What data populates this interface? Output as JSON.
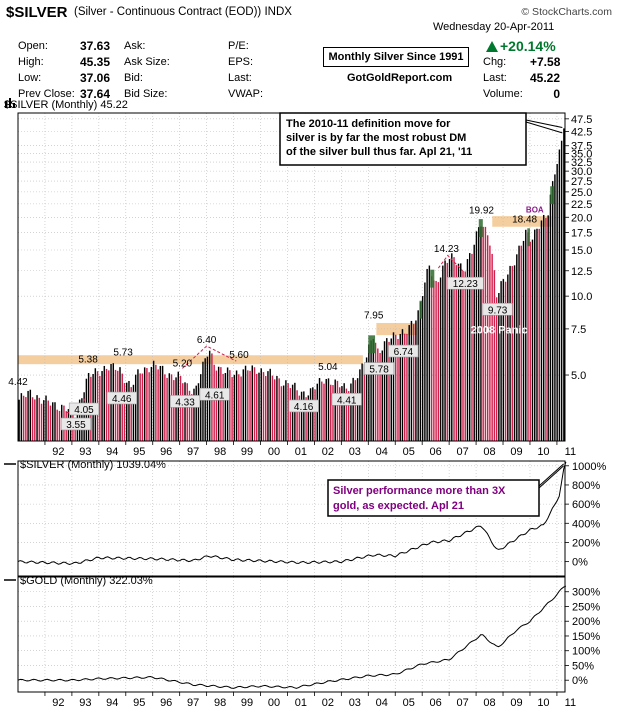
{
  "header": {
    "symbol": "$SILVER",
    "description": "(Silver - Continuous Contract (EOD))",
    "exchange": "INDX",
    "watermark": "© StockCharts.com",
    "date": "Wednesday  20-Apr-2011",
    "pct_change": "+20.14%",
    "box_title": "Monthly Silver Since 1991",
    "site": "GotGoldReport.com"
  },
  "quote": {
    "col1": [
      {
        "label": "Open:",
        "value": "37.63"
      },
      {
        "label": "High:",
        "value": "45.35"
      },
      {
        "label": "Low:",
        "value": "37.06"
      },
      {
        "label": "Prev Close:",
        "value": "37.64"
      }
    ],
    "col2": [
      "Ask:",
      "Ask Size:",
      "Bid:",
      "Bid Size:"
    ],
    "col3": [
      "P/E:",
      "EPS:",
      "Last:",
      "VWAP:"
    ],
    "col4": [
      {
        "label": "Chg:",
        "value": "+7.58"
      },
      {
        "label": "Last:",
        "value": "45.22"
      },
      {
        "label": "Volume:",
        "value": "0"
      }
    ]
  },
  "chart_data": [
    {
      "type": "bar",
      "title": "$SILVER (Monthly) 45.22",
      "scale": "log",
      "ylim": [
        2.8,
        50
      ],
      "yticks": [
        "47.5",
        "42.5",
        "37.5",
        "35.0",
        "32.5",
        "30.0",
        "27.5",
        "25.0",
        "22.5",
        "20.0",
        "17.5",
        "15.0",
        "12.5",
        "10.0",
        "7.5",
        "5.0"
      ],
      "x_labels": [
        "92",
        "93",
        "94",
        "95",
        "96",
        "97",
        "98",
        "99",
        "00",
        "01",
        "02",
        "03",
        "04",
        "05",
        "06",
        "07",
        "08",
        "09",
        "10",
        "11"
      ],
      "colors": {
        "up": "#000000",
        "down": "#d21e4b",
        "resistance_band": "#f3c58e",
        "highlight": "#2e6b2e"
      },
      "anchor_closes": [
        {
          "t": 1991.0,
          "v": 4.0
        },
        {
          "t": 1991.5,
          "v": 4.3
        },
        {
          "t": 1991.9,
          "v": 4.0
        },
        {
          "t": 1992.6,
          "v": 3.8
        },
        {
          "t": 1993.15,
          "v": 3.55
        },
        {
          "t": 1993.6,
          "v": 4.9
        },
        {
          "t": 1993.9,
          "v": 5.1
        },
        {
          "t": 1994.3,
          "v": 5.4
        },
        {
          "t": 1994.8,
          "v": 5.2
        },
        {
          "t": 1995.2,
          "v": 4.5
        },
        {
          "t": 1995.5,
          "v": 5.1
        },
        {
          "t": 1996.0,
          "v": 5.5
        },
        {
          "t": 1996.5,
          "v": 5.1
        },
        {
          "t": 1997.0,
          "v": 4.9
        },
        {
          "t": 1997.3,
          "v": 4.5
        },
        {
          "t": 1997.6,
          "v": 4.4
        },
        {
          "t": 1997.95,
          "v": 5.6
        },
        {
          "t": 1998.1,
          "v": 6.3
        },
        {
          "t": 1998.3,
          "v": 5.6
        },
        {
          "t": 1998.6,
          "v": 5.1
        },
        {
          "t": 1999.0,
          "v": 5.1
        },
        {
          "t": 1999.5,
          "v": 5.2
        },
        {
          "t": 1999.9,
          "v": 5.3
        },
        {
          "t": 2000.4,
          "v": 5.0
        },
        {
          "t": 2000.9,
          "v": 4.7
        },
        {
          "t": 2001.5,
          "v": 4.3
        },
        {
          "t": 2001.9,
          "v": 4.3
        },
        {
          "t": 2002.4,
          "v": 4.9
        },
        {
          "t": 2002.8,
          "v": 4.6
        },
        {
          "t": 2003.2,
          "v": 4.5
        },
        {
          "t": 2003.7,
          "v": 5.0
        },
        {
          "t": 2003.95,
          "v": 5.9
        },
        {
          "t": 2004.2,
          "v": 7.3
        },
        {
          "t": 2004.4,
          "v": 5.9
        },
        {
          "t": 2004.9,
          "v": 7.2
        },
        {
          "t": 2005.4,
          "v": 7.1
        },
        {
          "t": 2005.9,
          "v": 8.8
        },
        {
          "t": 2006.3,
          "v": 13.0
        },
        {
          "t": 2006.5,
          "v": 11.0
        },
        {
          "t": 2006.9,
          "v": 13.5
        },
        {
          "t": 2007.2,
          "v": 14.0
        },
        {
          "t": 2007.6,
          "v": 12.7
        },
        {
          "t": 2007.9,
          "v": 14.8
        },
        {
          "t": 2008.2,
          "v": 19.5
        },
        {
          "t": 2008.5,
          "v": 17.0
        },
        {
          "t": 2008.8,
          "v": 9.8
        },
        {
          "t": 2009.0,
          "v": 11.5
        },
        {
          "t": 2009.5,
          "v": 13.5
        },
        {
          "t": 2009.9,
          "v": 18.0
        },
        {
          "t": 2010.1,
          "v": 16.5
        },
        {
          "t": 2010.4,
          "v": 18.5
        },
        {
          "t": 2010.7,
          "v": 21.0
        },
        {
          "t": 2010.95,
          "v": 30.0
        },
        {
          "t": 2011.1,
          "v": 33.5
        },
        {
          "t": 2011.2,
          "v": 37.6
        },
        {
          "t": 2011.3,
          "v": 45.2
        }
      ],
      "labels": [
        {
          "t": 1991.0,
          "v": 4.42,
          "text": "4.42"
        },
        {
          "t": 1993.15,
          "v": 3.55,
          "text": "3.55",
          "boxed": true
        },
        {
          "t": 1993.45,
          "v": 4.05,
          "text": "4.05",
          "boxed": true
        },
        {
          "t": 1993.6,
          "v": 5.38,
          "text": "5.38"
        },
        {
          "t": 1994.9,
          "v": 5.73,
          "text": "5.73"
        },
        {
          "t": 1994.85,
          "v": 4.46,
          "text": "4.46",
          "boxed": true
        },
        {
          "t": 1997.1,
          "v": 5.2,
          "text": "5.20"
        },
        {
          "t": 1997.2,
          "v": 4.33,
          "text": "4.33",
          "boxed": true
        },
        {
          "t": 1998.0,
          "v": 6.4,
          "text": "6.40"
        },
        {
          "t": 1998.3,
          "v": 4.61,
          "text": "4.61",
          "boxed": true
        },
        {
          "t": 1999.2,
          "v": 5.6,
          "text": "5.60"
        },
        {
          "t": 2001.6,
          "v": 4.16,
          "text": "4.16",
          "boxed": true
        },
        {
          "t": 2002.5,
          "v": 5.04,
          "text": "5.04"
        },
        {
          "t": 2003.2,
          "v": 4.41,
          "text": "4.41",
          "boxed": true
        },
        {
          "t": 2004.2,
          "v": 7.95,
          "text": "7.95"
        },
        {
          "t": 2004.4,
          "v": 5.78,
          "text": "5.78",
          "boxed": true
        },
        {
          "t": 2005.3,
          "v": 6.74,
          "text": "6.74",
          "boxed": true
        },
        {
          "t": 2006.9,
          "v": 14.23,
          "text": "14.23"
        },
        {
          "t": 2007.6,
          "v": 12.23,
          "text": "12.23",
          "boxed": true
        },
        {
          "t": 2008.2,
          "v": 19.92,
          "text": "19.92"
        },
        {
          "t": 2008.8,
          "v": 9.73,
          "text": "9.73",
          "boxed": true
        },
        {
          "t": 2009.8,
          "v": 18.48,
          "text": "18.48"
        }
      ],
      "annotations": [
        {
          "text_lines": [
            "The 2010-11 definition move for",
            "silver is by far the most robust DM",
            "of the silver bull thus far. Apl 21, '11"
          ]
        },
        {
          "text": "2008 Panic"
        },
        {
          "text": "BOA"
        }
      ],
      "bands": [
        {
          "from": 1991.0,
          "to": 2003.8,
          "low": 5.5,
          "high": 5.95
        },
        {
          "from": 2004.3,
          "to": 2005.8,
          "low": 7.1,
          "high": 7.9
        },
        {
          "from": 2008.6,
          "to": 2010.8,
          "low": 18.4,
          "high": 20.2
        }
      ]
    },
    {
      "type": "line",
      "title": "$SILVER (Monthly) 1039.04%",
      "ylim": [
        -150,
        1050
      ],
      "yticks": [
        "1000%",
        "800%",
        "600%",
        "400%",
        "200%",
        "0%"
      ],
      "annotation": [
        "Silver performance more than 3X",
        "gold, as expected. Apl 21"
      ],
      "annotation_color": "#800080",
      "anchors": [
        {
          "t": 1991.0,
          "v": 0
        },
        {
          "t": 1992.0,
          "v": -10
        },
        {
          "t": 1993.1,
          "v": -20
        },
        {
          "t": 1994.0,
          "v": 40
        },
        {
          "t": 1996.0,
          "v": 30
        },
        {
          "t": 1997.5,
          "v": 10
        },
        {
          "t": 1998.1,
          "v": 60
        },
        {
          "t": 1999.0,
          "v": 20
        },
        {
          "t": 2001.5,
          "v": -10
        },
        {
          "t": 2003.0,
          "v": 0
        },
        {
          "t": 2004.2,
          "v": 70
        },
        {
          "t": 2005.0,
          "v": 60
        },
        {
          "t": 2006.3,
          "v": 200
        },
        {
          "t": 2007.0,
          "v": 220
        },
        {
          "t": 2008.2,
          "v": 380
        },
        {
          "t": 2008.8,
          "v": 110
        },
        {
          "t": 2009.5,
          "v": 240
        },
        {
          "t": 2010.0,
          "v": 330
        },
        {
          "t": 2010.5,
          "v": 380
        },
        {
          "t": 2010.9,
          "v": 580
        },
        {
          "t": 2011.1,
          "v": 700
        },
        {
          "t": 2011.3,
          "v": 1039
        }
      ]
    },
    {
      "type": "line",
      "title": "$GOLD (Monthly) 322.03%",
      "ylim": [
        -40,
        350
      ],
      "yticks": [
        "300%",
        "250%",
        "200%",
        "150%",
        "100%",
        "50%",
        "0%"
      ],
      "anchors": [
        {
          "t": 1991.0,
          "v": 0
        },
        {
          "t": 1993.0,
          "v": 0
        },
        {
          "t": 1994.0,
          "v": 5
        },
        {
          "t": 1996.0,
          "v": 10
        },
        {
          "t": 1997.5,
          "v": -15
        },
        {
          "t": 1999.0,
          "v": -25
        },
        {
          "t": 2000.0,
          "v": -20
        },
        {
          "t": 2001.3,
          "v": -25
        },
        {
          "t": 2002.5,
          "v": -5
        },
        {
          "t": 2004.0,
          "v": 15
        },
        {
          "t": 2005.0,
          "v": 20
        },
        {
          "t": 2006.0,
          "v": 55
        },
        {
          "t": 2007.0,
          "v": 70
        },
        {
          "t": 2008.2,
          "v": 155
        },
        {
          "t": 2008.8,
          "v": 110
        },
        {
          "t": 2009.5,
          "v": 170
        },
        {
          "t": 2010.0,
          "v": 200
        },
        {
          "t": 2010.5,
          "v": 245
        },
        {
          "t": 2011.0,
          "v": 290
        },
        {
          "t": 2011.3,
          "v": 322
        }
      ]
    }
  ]
}
